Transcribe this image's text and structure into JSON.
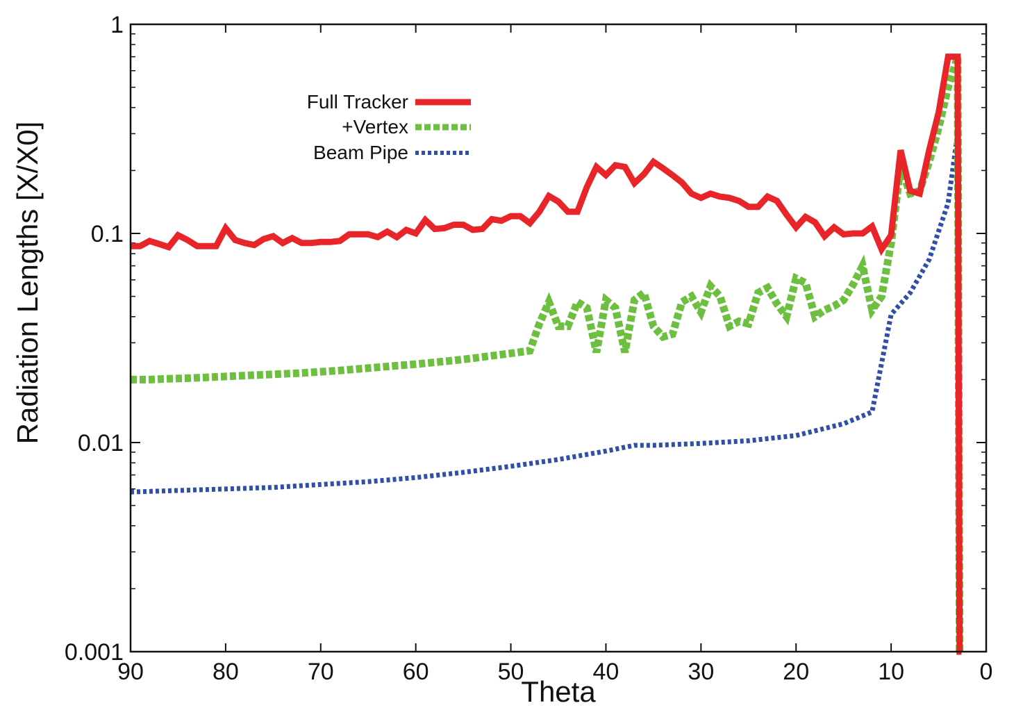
{
  "chart_data": {
    "type": "line",
    "title": "",
    "xlabel": "Theta",
    "ylabel": "Radiation Lengths [X/X0]",
    "xlim": [
      90,
      0
    ],
    "ylim": [
      0.001,
      1
    ],
    "yscale": "log",
    "x_ticks": [
      90,
      80,
      70,
      60,
      50,
      40,
      30,
      20,
      10,
      0
    ],
    "y_ticks": [
      0.001,
      0.01,
      0.1,
      1
    ],
    "x_tick_labels": [
      "90",
      "80",
      "70",
      "60",
      "50",
      "40",
      "30",
      "20",
      "10",
      "0"
    ],
    "y_tick_labels": [
      "0.001",
      "0.01",
      "0.1",
      "1"
    ],
    "legend_position": "upper-left",
    "colors": {
      "full_tracker": "#e8262a",
      "vertex": "#6cbf3f",
      "beam_pipe": "#2f4fa8"
    },
    "series": [
      {
        "name": "Full Tracker",
        "style": "solid",
        "x": [
          90,
          89,
          88,
          87,
          86,
          85,
          84,
          83,
          82,
          81,
          80,
          79,
          78,
          77,
          76,
          75,
          74,
          73,
          72,
          71,
          70,
          69,
          68,
          67,
          66,
          65,
          64,
          63,
          62,
          61,
          60,
          59,
          58,
          57,
          56,
          55,
          54,
          53,
          52,
          51,
          50,
          49,
          48,
          47,
          46,
          45,
          44,
          43,
          42,
          41,
          40,
          39,
          38,
          37,
          36,
          35,
          34,
          33,
          32,
          31,
          30,
          29,
          28,
          27,
          26,
          25,
          24,
          23,
          22,
          21,
          20,
          19,
          18,
          17,
          16,
          15,
          14,
          13,
          12,
          11,
          10,
          9,
          8,
          7,
          6,
          5,
          4,
          3,
          2.8,
          2.6
        ],
        "values": [
          0.087,
          0.087,
          0.092,
          0.089,
          0.086,
          0.098,
          0.093,
          0.087,
          0.087,
          0.087,
          0.106,
          0.093,
          0.09,
          0.088,
          0.094,
          0.097,
          0.09,
          0.095,
          0.09,
          0.09,
          0.091,
          0.091,
          0.092,
          0.099,
          0.099,
          0.099,
          0.096,
          0.102,
          0.096,
          0.104,
          0.1,
          0.116,
          0.105,
          0.106,
          0.11,
          0.11,
          0.104,
          0.105,
          0.117,
          0.115,
          0.121,
          0.121,
          0.112,
          0.127,
          0.151,
          0.142,
          0.127,
          0.127,
          0.167,
          0.208,
          0.19,
          0.212,
          0.208,
          0.174,
          0.192,
          0.22,
          0.205,
          0.19,
          0.175,
          0.155,
          0.148,
          0.155,
          0.15,
          0.148,
          0.143,
          0.134,
          0.134,
          0.15,
          0.143,
          0.123,
          0.107,
          0.12,
          0.113,
          0.097,
          0.107,
          0.099,
          0.1,
          0.1,
          0.108,
          0.084,
          0.098,
          0.25,
          0.16,
          0.155,
          0.25,
          0.38,
          0.7,
          0.7,
          0.001,
          0.001
        ]
      },
      {
        "name": "+Vertex",
        "style": "dashed",
        "x": [
          90,
          88,
          86,
          84,
          82,
          80,
          78,
          76,
          74,
          72,
          70,
          68,
          66,
          64,
          62,
          60,
          58,
          56,
          54,
          52,
          50,
          48,
          47,
          46,
          45,
          44,
          43,
          42,
          41,
          40,
          39,
          38,
          37,
          36,
          35,
          34,
          33,
          32,
          31,
          30,
          29,
          28,
          27,
          26,
          25,
          24,
          23,
          22,
          21,
          20,
          19,
          18,
          17,
          16,
          15,
          14,
          13,
          12,
          11,
          10,
          9,
          8,
          7,
          6,
          5,
          4,
          3,
          2.8,
          2.6
        ],
        "values": [
          0.02,
          0.02,
          0.0202,
          0.0203,
          0.0205,
          0.0207,
          0.0209,
          0.0211,
          0.0213,
          0.0215,
          0.0218,
          0.0221,
          0.0225,
          0.0229,
          0.0233,
          0.0237,
          0.0242,
          0.0247,
          0.0253,
          0.026,
          0.0267,
          0.0275,
          0.037,
          0.047,
          0.036,
          0.036,
          0.047,
          0.044,
          0.027,
          0.048,
          0.044,
          0.027,
          0.048,
          0.052,
          0.036,
          0.032,
          0.033,
          0.047,
          0.05,
          0.042,
          0.056,
          0.05,
          0.036,
          0.038,
          0.037,
          0.052,
          0.055,
          0.046,
          0.04,
          0.061,
          0.058,
          0.04,
          0.043,
          0.045,
          0.048,
          0.057,
          0.07,
          0.043,
          0.05,
          0.09,
          0.21,
          0.155,
          0.16,
          0.22,
          0.32,
          0.5,
          0.7,
          0.001,
          0.001
        ]
      },
      {
        "name": "Beam Pipe",
        "style": "dotted",
        "x": [
          90,
          85,
          80,
          75,
          70,
          65,
          60,
          55,
          50,
          45,
          40,
          37,
          35,
          30,
          25,
          20,
          15,
          12,
          10,
          8,
          6,
          4,
          3,
          2.8,
          2.6
        ],
        "values": [
          0.0058,
          0.0059,
          0.006,
          0.0061,
          0.0063,
          0.0065,
          0.0068,
          0.0072,
          0.0077,
          0.0083,
          0.0091,
          0.0097,
          0.0097,
          0.0099,
          0.0102,
          0.0108,
          0.0123,
          0.014,
          0.041,
          0.052,
          0.075,
          0.14,
          0.3,
          0.001,
          0.001
        ]
      }
    ]
  }
}
